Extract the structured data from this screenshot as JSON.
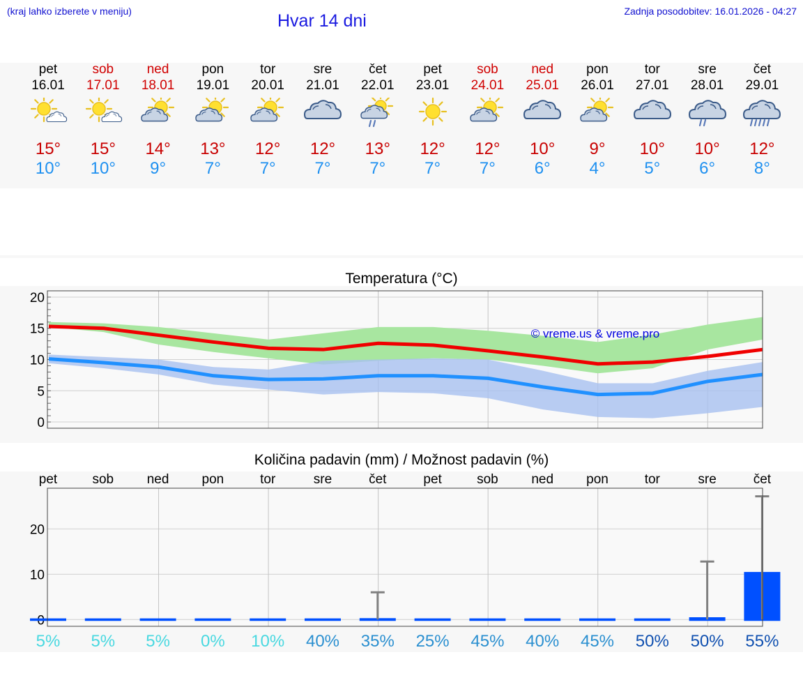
{
  "header": {
    "note": "(kraj lahko izberete v meniju)",
    "title": "Hvar 14 dni",
    "updated": "Zadnja posodobitev: 16.01.2026 - 04:27"
  },
  "days": [
    {
      "name": "pet",
      "date": "16.01",
      "weekend": false,
      "icon": "sun-cloud-icon",
      "tmax": "15°",
      "tmin": "10°"
    },
    {
      "name": "sob",
      "date": "17.01",
      "weekend": true,
      "icon": "sun-cloud-icon",
      "tmax": "15°",
      "tmin": "10°"
    },
    {
      "name": "ned",
      "date": "18.01",
      "weekend": true,
      "icon": "partly-cloudy-icon",
      "tmax": "14°",
      "tmin": "9°"
    },
    {
      "name": "pon",
      "date": "19.01",
      "weekend": false,
      "icon": "partly-cloudy-icon",
      "tmax": "13°",
      "tmin": "7°"
    },
    {
      "name": "tor",
      "date": "20.01",
      "weekend": false,
      "icon": "partly-cloudy-icon",
      "tmax": "12°",
      "tmin": "7°"
    },
    {
      "name": "sre",
      "date": "21.01",
      "weekend": false,
      "icon": "cloudy-icon",
      "tmax": "12°",
      "tmin": "7°"
    },
    {
      "name": "čet",
      "date": "22.01",
      "weekend": false,
      "icon": "sun-rain-icon",
      "tmax": "13°",
      "tmin": "7°"
    },
    {
      "name": "pet",
      "date": "23.01",
      "weekend": false,
      "icon": "sun-icon",
      "tmax": "12°",
      "tmin": "7°"
    },
    {
      "name": "sob",
      "date": "24.01",
      "weekend": true,
      "icon": "partly-cloudy-icon",
      "tmax": "12°",
      "tmin": "7°"
    },
    {
      "name": "ned",
      "date": "25.01",
      "weekend": true,
      "icon": "cloudy-icon",
      "tmax": "10°",
      "tmin": "6°"
    },
    {
      "name": "pon",
      "date": "26.01",
      "weekend": false,
      "icon": "partly-cloudy-icon",
      "tmax": "9°",
      "tmin": "4°"
    },
    {
      "name": "tor",
      "date": "27.01",
      "weekend": false,
      "icon": "cloudy-icon",
      "tmax": "10°",
      "tmin": "5°"
    },
    {
      "name": "sre",
      "date": "28.01",
      "weekend": false,
      "icon": "light-rain-icon",
      "tmax": "10°",
      "tmin": "6°"
    },
    {
      "name": "čet",
      "date": "29.01",
      "weekend": false,
      "icon": "rain-icon",
      "tmax": "12°",
      "tmin": "8°"
    }
  ],
  "colors": {
    "max_line": "#f00000",
    "min_line": "#2090ff",
    "max_band": "#a8e6a0",
    "min_band": "#a8c0f0",
    "bar": "#0050ff",
    "whisker": "#808080",
    "weekday_text": "#000000",
    "weekend_text": "#d00000"
  },
  "chart_data": [
    {
      "type": "line",
      "title": "Temperatura (°C)",
      "watermark": "© vreme.us & vreme.pro",
      "x": [
        0,
        1,
        2,
        3,
        4,
        5,
        6,
        7,
        8,
        9,
        10,
        11,
        12,
        13
      ],
      "ylim": [
        -1,
        21
      ],
      "yticks": [
        0,
        5,
        10,
        15,
        20
      ],
      "series": [
        {
          "name": "max",
          "values": [
            15.3,
            15.0,
            13.9,
            12.8,
            11.8,
            11.6,
            12.6,
            12.3,
            11.4,
            10.4,
            9.3,
            9.6,
            10.5,
            11.6
          ]
        },
        {
          "name": "min",
          "values": [
            10.1,
            9.5,
            8.8,
            7.4,
            6.8,
            6.9,
            7.4,
            7.4,
            7.0,
            5.6,
            4.4,
            4.6,
            6.5,
            7.6
          ]
        }
      ],
      "bands": [
        {
          "name": "max-range",
          "upper": [
            16.0,
            15.8,
            15.2,
            14.2,
            13.2,
            14.2,
            15.2,
            15.2,
            14.6,
            13.8,
            12.8,
            14.0,
            15.6,
            16.8
          ],
          "lower": [
            15.2,
            14.4,
            12.4,
            11.2,
            10.2,
            9.2,
            9.8,
            10.2,
            10.0,
            9.0,
            7.8,
            8.6,
            11.6,
            13.2
          ]
        },
        {
          "name": "min-range",
          "upper": [
            10.8,
            10.4,
            10.0,
            8.8,
            8.4,
            9.8,
            10.0,
            10.2,
            10.0,
            8.2,
            6.2,
            6.2,
            8.2,
            9.6
          ],
          "lower": [
            9.4,
            8.6,
            7.6,
            6.0,
            5.2,
            4.4,
            4.8,
            4.6,
            3.8,
            2.0,
            0.8,
            0.6,
            1.4,
            2.4
          ]
        }
      ]
    },
    {
      "type": "bar",
      "title": "Količina padavin (mm) / Možnost padavin (%)",
      "categories": [
        "pet",
        "sob",
        "ned",
        "pon",
        "tor",
        "sre",
        "čet",
        "pet",
        "sob",
        "ned",
        "pon",
        "tor",
        "sre",
        "čet"
      ],
      "ylim": [
        -1.5,
        29
      ],
      "yticks": [
        0,
        10,
        20
      ],
      "values": [
        0,
        0,
        0,
        0,
        0,
        0,
        0.3,
        0,
        0,
        0,
        0,
        0,
        0.5,
        10.5
      ],
      "whisker_max": [
        0,
        0,
        0,
        0,
        0,
        0,
        6,
        0,
        0,
        0,
        0,
        0,
        12.8,
        27.2
      ],
      "chance": [
        "5%",
        "5%",
        "5%",
        "0%",
        "10%",
        "40%",
        "35%",
        "25%",
        "45%",
        "40%",
        "45%",
        "50%",
        "50%",
        "55%"
      ],
      "chance_colors": [
        "#48d8e0",
        "#48d8e0",
        "#48d8e0",
        "#48d8e0",
        "#48d8e0",
        "#2a8fd0",
        "#2a8fd0",
        "#2a8fd0",
        "#2a8fd0",
        "#2a8fd0",
        "#2a8fd0",
        "#1050b0",
        "#1050b0",
        "#1050b0"
      ]
    }
  ]
}
